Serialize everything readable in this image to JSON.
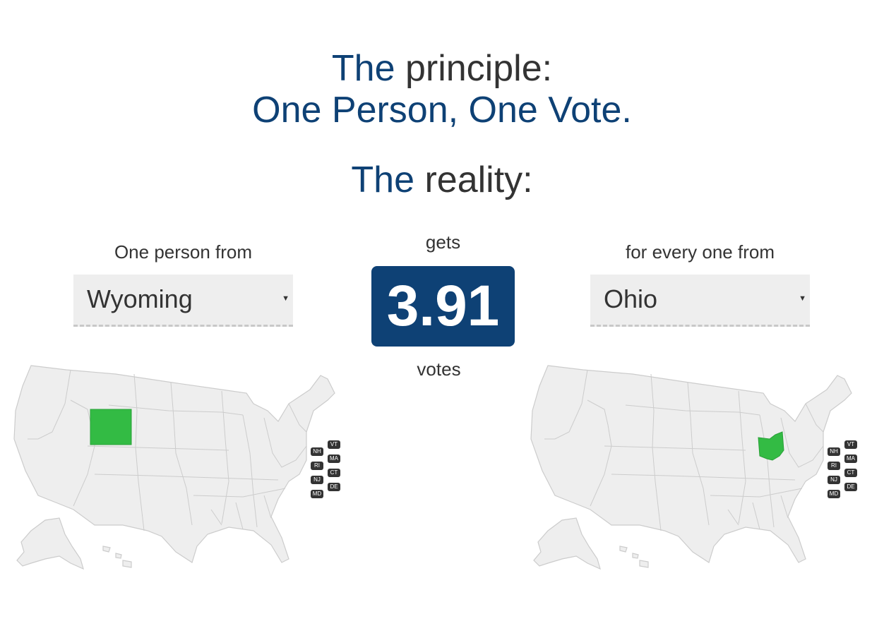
{
  "headline": {
    "principle_prefix": "The",
    "principle_word": "principle:",
    "motto": "One Person, One Vote.",
    "reality_prefix": "The",
    "reality_word": "reality:"
  },
  "left": {
    "caption": "One person from",
    "selected_state": "Wyoming",
    "highlight_color": "#33bb44"
  },
  "center": {
    "gets_label": "gets",
    "ratio": "3.91",
    "votes_label": "votes",
    "box_color": "#0e4175"
  },
  "right": {
    "caption": "for every one from",
    "selected_state": "Ohio",
    "highlight_color": "#33bb44"
  },
  "small_state_tags": [
    "VT",
    "NH",
    "MA",
    "RI",
    "CT",
    "NJ",
    "DE",
    "MD"
  ],
  "colors": {
    "title_blue": "#0e4175",
    "map_fill": "#eeeeee",
    "map_border": "#cccccc",
    "selected_fill": "#33bb44",
    "tag_bg": "#333333"
  },
  "icons": {
    "dropdown": "caret-down-icon"
  }
}
